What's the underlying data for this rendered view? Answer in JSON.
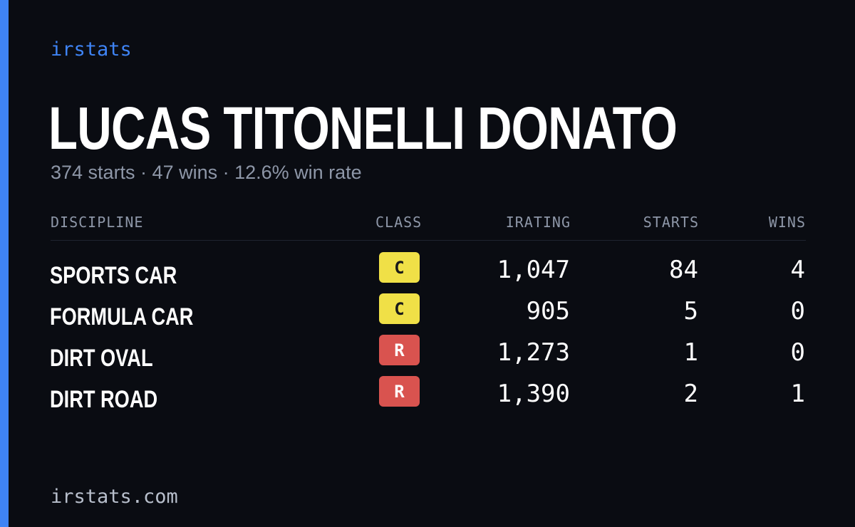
{
  "brand": "irstats",
  "driver": {
    "name": "LUCAS TITONELLI DONATO",
    "summary": "374 starts · 47 wins · 12.6% win rate"
  },
  "table": {
    "headers": {
      "discipline": "DISCIPLINE",
      "class": "CLASS",
      "irating": "IRATING",
      "starts": "STARTS",
      "wins": "WINS"
    },
    "rows": [
      {
        "discipline": "SPORTS CAR",
        "class": "C",
        "class_color": "#f0e047",
        "class_text_color": "#1a1a1a",
        "irating": "1,047",
        "starts": "84",
        "wins": "4"
      },
      {
        "discipline": "FORMULA CAR",
        "class": "C",
        "class_color": "#f0e047",
        "class_text_color": "#1a1a1a",
        "irating": "905",
        "starts": "5",
        "wins": "0"
      },
      {
        "discipline": "DIRT OVAL",
        "class": "R",
        "class_color": "#d9534f",
        "class_text_color": "#ffffff",
        "irating": "1,273",
        "starts": "1",
        "wins": "0"
      },
      {
        "discipline": "DIRT ROAD",
        "class": "R",
        "class_color": "#d9534f",
        "class_text_color": "#ffffff",
        "irating": "1,390",
        "starts": "2",
        "wins": "1"
      }
    ]
  },
  "footer": "irstats.com",
  "colors": {
    "accent": "#3f84f5",
    "background": "#0a0c12",
    "muted": "#8e97a8"
  }
}
